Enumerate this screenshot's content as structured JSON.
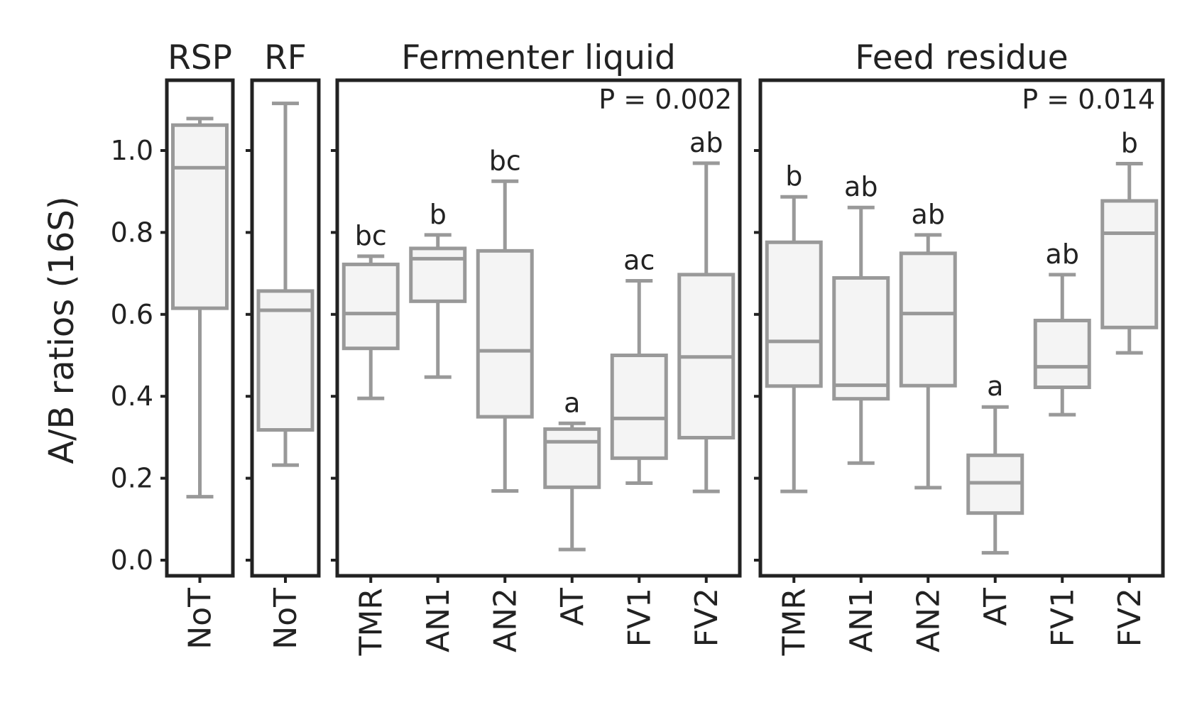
{
  "chart_data": {
    "type": "box",
    "ylabel": "A/B ratios (16S)",
    "ylim": [
      -0.04,
      1.17
    ],
    "yticks": [
      "0.0",
      "0.2",
      "0.4",
      "0.6",
      "0.8",
      "1.0"
    ],
    "panels": [
      {
        "title": "RSP",
        "pvalue": "",
        "boxes": [
          {
            "category": "NoT",
            "whisker_low": 0.155,
            "q1": 0.615,
            "median": 0.958,
            "q3": 1.062,
            "whisker_high": 1.078,
            "letter": ""
          }
        ]
      },
      {
        "title": "RF",
        "pvalue": "",
        "boxes": [
          {
            "category": "NoT",
            "whisker_low": 0.232,
            "q1": 0.318,
            "median": 0.61,
            "q3": 0.657,
            "whisker_high": 1.115,
            "letter": ""
          }
        ]
      },
      {
        "title": "Fermenter liquid",
        "pvalue": "P = 0.002",
        "boxes": [
          {
            "category": "TMR",
            "whisker_low": 0.395,
            "q1": 0.517,
            "median": 0.602,
            "q3": 0.722,
            "whisker_high": 0.742,
            "letter": "bc"
          },
          {
            "category": "AN1",
            "whisker_low": 0.447,
            "q1": 0.632,
            "median": 0.736,
            "q3": 0.761,
            "whisker_high": 0.794,
            "letter": "b"
          },
          {
            "category": "AN2",
            "whisker_low": 0.169,
            "q1": 0.35,
            "median": 0.511,
            "q3": 0.755,
            "whisker_high": 0.925,
            "letter": "bc"
          },
          {
            "category": "AT",
            "whisker_low": 0.026,
            "q1": 0.178,
            "median": 0.289,
            "q3": 0.32,
            "whisker_high": 0.334,
            "letter": "a"
          },
          {
            "category": "FV1",
            "whisker_low": 0.188,
            "q1": 0.249,
            "median": 0.346,
            "q3": 0.5,
            "whisker_high": 0.682,
            "letter": "ac"
          },
          {
            "category": "FV2",
            "whisker_low": 0.168,
            "q1": 0.299,
            "median": 0.496,
            "q3": 0.697,
            "whisker_high": 0.969,
            "letter": "ab"
          }
        ]
      },
      {
        "title": "Feed residue",
        "pvalue": "P = 0.014",
        "boxes": [
          {
            "category": "TMR",
            "whisker_low": 0.168,
            "q1": 0.425,
            "median": 0.534,
            "q3": 0.776,
            "whisker_high": 0.887,
            "letter": "b"
          },
          {
            "category": "AN1",
            "whisker_low": 0.237,
            "q1": 0.394,
            "median": 0.427,
            "q3": 0.689,
            "whisker_high": 0.861,
            "letter": "ab"
          },
          {
            "category": "AN2",
            "whisker_low": 0.177,
            "q1": 0.426,
            "median": 0.602,
            "q3": 0.749,
            "whisker_high": 0.794,
            "letter": "ab"
          },
          {
            "category": "AT",
            "whisker_low": 0.018,
            "q1": 0.115,
            "median": 0.189,
            "q3": 0.256,
            "whisker_high": 0.374,
            "letter": "a"
          },
          {
            "category": "FV1",
            "whisker_low": 0.355,
            "q1": 0.422,
            "median": 0.472,
            "q3": 0.585,
            "whisker_high": 0.697,
            "letter": "ab"
          },
          {
            "category": "FV2",
            "whisker_low": 0.506,
            "q1": 0.568,
            "median": 0.798,
            "q3": 0.877,
            "whisker_high": 0.968,
            "letter": "b"
          }
        ]
      }
    ],
    "colors": {
      "box_fill": "#f4f4f4",
      "box_stroke": "#999999",
      "frame": "#222222"
    }
  }
}
